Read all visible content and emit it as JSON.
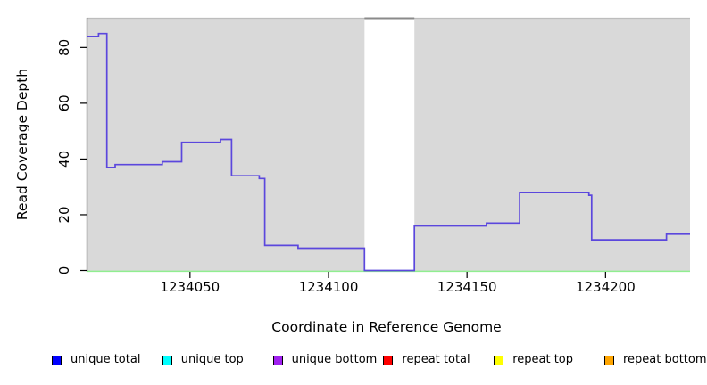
{
  "chart_data": {
    "type": "line",
    "subtype": "step",
    "title": "",
    "xlabel": "Coordinate in Reference Genome",
    "ylabel": "Read Coverage Depth",
    "xlim": [
      1234013,
      1234230.5
    ],
    "ylim": [
      0,
      90.5
    ],
    "x_ticks": [
      1234050,
      1234100,
      1234150,
      1234200
    ],
    "y_ticks": [
      0,
      20,
      40,
      60,
      80
    ],
    "grid": false,
    "legend_position": "bottom",
    "plot_background": "#d9d9d9",
    "plot_top_border_color": "#bdbdbd",
    "axis_color": "#000000",
    "masked_region": {
      "x_start": 1234113,
      "x_end": 1234131,
      "fill": "#ffffff",
      "top_border": "#8a8a8a"
    },
    "zero_line": {
      "y": 0,
      "color": "#90ee90"
    },
    "series": [
      {
        "name": "coverage",
        "color": "#5b47dd",
        "step_points": [
          [
            1234013,
            84
          ],
          [
            1234017,
            85
          ],
          [
            1234020,
            37
          ],
          [
            1234023,
            38
          ],
          [
            1234040,
            39
          ],
          [
            1234047,
            46
          ],
          [
            1234061,
            47
          ],
          [
            1234065,
            34
          ],
          [
            1234075,
            33
          ],
          [
            1234077,
            9
          ],
          [
            1234089,
            8
          ],
          [
            1234113,
            0
          ],
          [
            1234131,
            16
          ],
          [
            1234157,
            17
          ],
          [
            1234169,
            28
          ],
          [
            1234194,
            27
          ],
          [
            1234195,
            11
          ],
          [
            1234222,
            13
          ]
        ]
      }
    ],
    "legend": {
      "items": [
        {
          "label": "unique total",
          "color": "#0000ff"
        },
        {
          "label": "unique top",
          "color": "#00ffff"
        },
        {
          "label": "unique bottom",
          "color": "#a020f0"
        },
        {
          "label": "repeat total",
          "color": "#ff0000"
        },
        {
          "label": "repeat top",
          "color": "#ffff00"
        },
        {
          "label": "repeat bottom",
          "color": "#ffa500"
        }
      ]
    }
  }
}
